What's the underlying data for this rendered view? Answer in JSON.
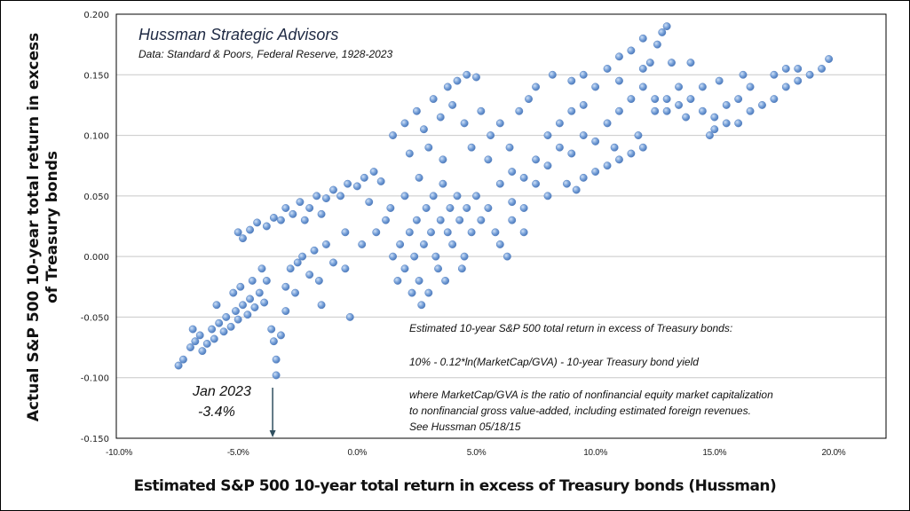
{
  "chart_data": {
    "type": "scatter",
    "title": "Hussman Strategic Advisors",
    "subtitle": "Data: Standard & Poors, Federal Reserve, 1928-2023",
    "xlabel": "Estimated S&P 500 10-year total return in excess of Treasury bonds (Hussman)",
    "ylabel_lines": [
      "Actual S&P 500 10-year total return in excess",
      "of Treasury bonds"
    ],
    "xlim": [
      -10,
      22.2
    ],
    "ylim": [
      -0.15,
      0.2
    ],
    "x_ticks": [
      -10,
      -5,
      0,
      5,
      10,
      15,
      20
    ],
    "x_tick_labels": [
      "-10.0%",
      "-5.0%",
      "0.0%",
      "5.0%",
      "10.0%",
      "15.0%",
      "20.0%"
    ],
    "y_ticks": [
      0.2,
      0.15,
      0.1,
      0.05,
      0.0,
      -0.05,
      -0.1,
      -0.15
    ],
    "y_tick_labels": [
      "0.200",
      "0.150",
      "0.100",
      "0.050",
      "0.000",
      "-0.050",
      "-0.100",
      "-0.150"
    ],
    "grid": "horizontal",
    "marker_color": "#6f9bd6",
    "annotation": {
      "label": "Jan 2023",
      "value_label": "-3.4%",
      "x": -3.4
    },
    "formula_note": {
      "line1": "Estimated 10-year S&P 500 total return in excess of Treasury bonds:",
      "line2": "10% - 0.12*ln(MarketCap/GVA) - 10-year Treasury bond yield",
      "line3": "where MarketCap/GVA is the ratio of nonfinancial equity market capitalization",
      "line4": "to nonfinancial gross value-added, including estimated foreign revenues.",
      "line5": "See Hussman 05/18/15"
    },
    "points": [
      [
        -7.5,
        -0.09
      ],
      [
        -7.3,
        -0.085
      ],
      [
        -7.0,
        -0.075
      ],
      [
        -6.8,
        -0.07
      ],
      [
        -6.6,
        -0.065
      ],
      [
        -6.5,
        -0.078
      ],
      [
        -6.3,
        -0.072
      ],
      [
        -6.1,
        -0.06
      ],
      [
        -6.0,
        -0.068
      ],
      [
        -5.8,
        -0.055
      ],
      [
        -5.6,
        -0.062
      ],
      [
        -5.5,
        -0.05
      ],
      [
        -5.3,
        -0.058
      ],
      [
        -5.1,
        -0.045
      ],
      [
        -5.0,
        -0.052
      ],
      [
        -4.8,
        -0.04
      ],
      [
        -4.6,
        -0.048
      ],
      [
        -4.5,
        -0.035
      ],
      [
        -4.3,
        -0.042
      ],
      [
        -4.1,
        -0.03
      ],
      [
        -3.9,
        -0.038
      ],
      [
        -3.8,
        -0.02
      ],
      [
        -3.6,
        -0.06
      ],
      [
        -3.5,
        -0.07
      ],
      [
        -3.4,
        -0.085
      ],
      [
        -3.4,
        -0.098
      ],
      [
        -3.2,
        -0.065
      ],
      [
        -3.0,
        -0.045
      ],
      [
        -3.0,
        -0.025
      ],
      [
        -2.8,
        -0.01
      ],
      [
        -2.6,
        -0.03
      ],
      [
        -2.5,
        -0.005
      ],
      [
        -2.3,
        0.0
      ],
      [
        -2.0,
        -0.015
      ],
      [
        -1.8,
        0.005
      ],
      [
        -1.6,
        -0.02
      ],
      [
        -1.5,
        -0.04
      ],
      [
        -1.3,
        0.01
      ],
      [
        -1.0,
        -0.005
      ],
      [
        -0.5,
        -0.01
      ],
      [
        -0.3,
        -0.05
      ],
      [
        -5.9,
        -0.04
      ],
      [
        -5.2,
        -0.03
      ],
      [
        -4.9,
        -0.025
      ],
      [
        -4.4,
        -0.02
      ],
      [
        -4.0,
        -0.01
      ],
      [
        -6.9,
        -0.06
      ],
      [
        -5.0,
        0.02
      ],
      [
        -4.5,
        0.022
      ],
      [
        -4.2,
        0.028
      ],
      [
        -3.8,
        0.025
      ],
      [
        -3.5,
        0.032
      ],
      [
        -3.2,
        0.03
      ],
      [
        -3.0,
        0.04
      ],
      [
        -2.7,
        0.035
      ],
      [
        -2.4,
        0.045
      ],
      [
        -2.0,
        0.04
      ],
      [
        -1.7,
        0.05
      ],
      [
        -1.3,
        0.048
      ],
      [
        -1.0,
        0.055
      ],
      [
        -0.7,
        0.05
      ],
      [
        -0.4,
        0.06
      ],
      [
        0.0,
        0.058
      ],
      [
        0.3,
        0.065
      ],
      [
        0.7,
        0.07
      ],
      [
        1.0,
        0.062
      ],
      [
        -4.8,
        0.015
      ],
      [
        -2.2,
        0.03
      ],
      [
        -1.5,
        0.035
      ],
      [
        0.5,
        0.045
      ],
      [
        1.2,
        0.03
      ],
      [
        0.8,
        0.02
      ],
      [
        0.2,
        0.01
      ],
      [
        -0.5,
        0.02
      ],
      [
        1.5,
        0.0
      ],
      [
        1.8,
        0.01
      ],
      [
        2.0,
        -0.01
      ],
      [
        2.2,
        0.02
      ],
      [
        2.4,
        0.0
      ],
      [
        2.5,
        0.03
      ],
      [
        2.6,
        -0.02
      ],
      [
        2.8,
        0.01
      ],
      [
        2.9,
        0.04
      ],
      [
        3.0,
        -0.03
      ],
      [
        3.1,
        0.02
      ],
      [
        3.2,
        0.05
      ],
      [
        3.3,
        0.0
      ],
      [
        3.4,
        -0.01
      ],
      [
        3.5,
        0.03
      ],
      [
        3.6,
        0.06
      ],
      [
        3.8,
        0.02
      ],
      [
        3.9,
        0.04
      ],
      [
        4.0,
        0.01
      ],
      [
        4.2,
        0.05
      ],
      [
        4.3,
        0.03
      ],
      [
        4.5,
        0.0
      ],
      [
        4.6,
        0.04
      ],
      [
        4.8,
        0.02
      ],
      [
        5.0,
        0.05
      ],
      [
        5.2,
        0.03
      ],
      [
        5.5,
        0.04
      ],
      [
        5.8,
        0.02
      ],
      [
        6.0,
        0.01
      ],
      [
        6.3,
        0.0
      ],
      [
        1.7,
        -0.02
      ],
      [
        2.3,
        -0.03
      ],
      [
        2.7,
        -0.04
      ],
      [
        3.7,
        -0.02
      ],
      [
        4.4,
        -0.01
      ],
      [
        1.4,
        0.04
      ],
      [
        2.0,
        0.05
      ],
      [
        2.6,
        0.065
      ],
      [
        7.0,
        0.02
      ],
      [
        6.5,
        0.03
      ],
      [
        1.5,
        0.1
      ],
      [
        2.0,
        0.11
      ],
      [
        2.5,
        0.12
      ],
      [
        2.8,
        0.105
      ],
      [
        3.2,
        0.13
      ],
      [
        3.5,
        0.115
      ],
      [
        3.8,
        0.14
      ],
      [
        4.2,
        0.145
      ],
      [
        4.6,
        0.15
      ],
      [
        5.0,
        0.148
      ],
      [
        4.0,
        0.125
      ],
      [
        4.5,
        0.11
      ],
      [
        5.2,
        0.12
      ],
      [
        5.6,
        0.1
      ],
      [
        6.0,
        0.11
      ],
      [
        6.4,
        0.09
      ],
      [
        3.0,
        0.09
      ],
      [
        3.6,
        0.08
      ],
      [
        4.8,
        0.09
      ],
      [
        5.5,
        0.08
      ],
      [
        2.2,
        0.085
      ],
      [
        6.8,
        0.12
      ],
      [
        7.2,
        0.13
      ],
      [
        7.5,
        0.14
      ],
      [
        8.2,
        0.15
      ],
      [
        9.0,
        0.145
      ],
      [
        9.5,
        0.15
      ],
      [
        6,
        0.06
      ],
      [
        6.5,
        0.07
      ],
      [
        7,
        0.065
      ],
      [
        7.5,
        0.08
      ],
      [
        8,
        0.075
      ],
      [
        8.5,
        0.09
      ],
      [
        9,
        0.085
      ],
      [
        9.5,
        0.1
      ],
      [
        10,
        0.095
      ],
      [
        10.5,
        0.11
      ],
      [
        11,
        0.12
      ],
      [
        11.5,
        0.13
      ],
      [
        12,
        0.14
      ],
      [
        12.3,
        0.16
      ],
      [
        12.6,
        0.175
      ],
      [
        12.8,
        0.185
      ],
      [
        13,
        0.19
      ],
      [
        12,
        0.18
      ],
      [
        11.5,
        0.17
      ],
      [
        11,
        0.165
      ],
      [
        10.5,
        0.155
      ],
      [
        10,
        0.14
      ],
      [
        9.5,
        0.125
      ],
      [
        9,
        0.12
      ],
      [
        8.5,
        0.11
      ],
      [
        8,
        0.1
      ],
      [
        7.5,
        0.06
      ],
      [
        8,
        0.05
      ],
      [
        8.8,
        0.06
      ],
      [
        9.5,
        0.065
      ],
      [
        10,
        0.07
      ],
      [
        10.5,
        0.075
      ],
      [
        11,
        0.08
      ],
      [
        11.5,
        0.085
      ],
      [
        12,
        0.09
      ],
      [
        7,
        0.04
      ],
      [
        6.5,
        0.045
      ],
      [
        9.2,
        0.055
      ],
      [
        10.8,
        0.09
      ],
      [
        11.8,
        0.1
      ],
      [
        12.5,
        0.12
      ],
      [
        13,
        0.13
      ],
      [
        13.5,
        0.14
      ],
      [
        11,
        0.145
      ],
      [
        12,
        0.155
      ],
      [
        13.2,
        0.16
      ],
      [
        14,
        0.16
      ],
      [
        12.5,
        0.13
      ],
      [
        13,
        0.12
      ],
      [
        13.5,
        0.125
      ],
      [
        14,
        0.13
      ],
      [
        14.5,
        0.12
      ],
      [
        15,
        0.115
      ],
      [
        15.5,
        0.125
      ],
      [
        16,
        0.11
      ],
      [
        16.5,
        0.12
      ],
      [
        17,
        0.125
      ],
      [
        17.5,
        0.13
      ],
      [
        18,
        0.14
      ],
      [
        18.5,
        0.145
      ],
      [
        19,
        0.15
      ],
      [
        19.5,
        0.155
      ],
      [
        19.8,
        0.163
      ],
      [
        18,
        0.155
      ],
      [
        18.5,
        0.155
      ],
      [
        17.5,
        0.15
      ],
      [
        16.5,
        0.14
      ],
      [
        16,
        0.13
      ],
      [
        15,
        0.105
      ],
      [
        14.8,
        0.1
      ],
      [
        15.5,
        0.11
      ],
      [
        13.8,
        0.115
      ],
      [
        15.2,
        0.145
      ],
      [
        16.2,
        0.15
      ],
      [
        14.5,
        0.14
      ]
    ]
  }
}
